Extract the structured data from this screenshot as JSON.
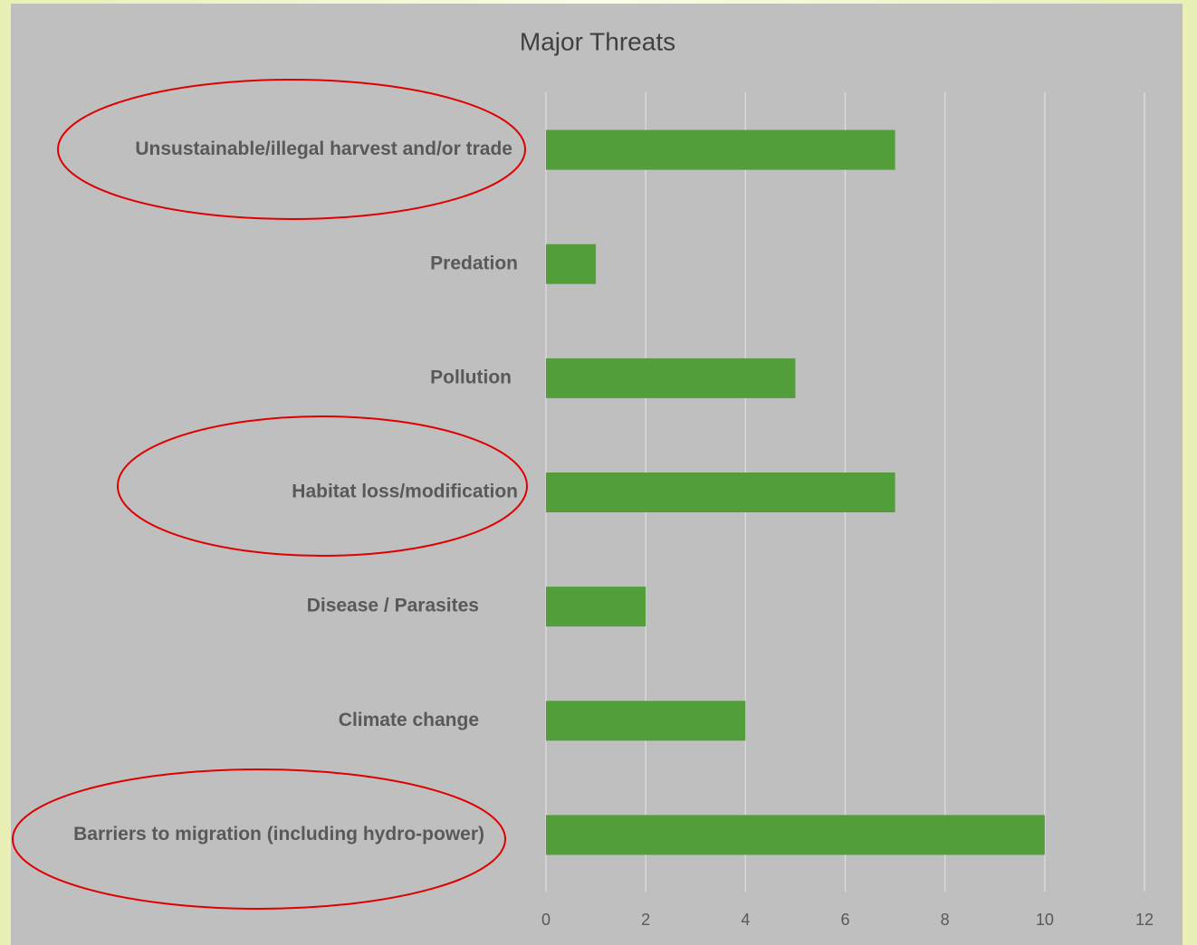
{
  "chart_data": {
    "type": "bar",
    "orientation": "horizontal",
    "title": "Major Threats",
    "categories": [
      "Unsustainable/illegal harvest and/or trade",
      "Predation",
      "Pollution",
      "Habitat loss/modification",
      "Disease / Parasites",
      "Climate change",
      "Barriers to migration (including hydro-power)"
    ],
    "values": [
      7,
      1,
      5,
      7,
      2,
      4,
      10
    ],
    "color": "#529e3a",
    "xlim": [
      0,
      12
    ],
    "xticks": [
      0,
      2,
      4,
      6,
      8,
      10,
      12
    ],
    "grid": true
  }
}
